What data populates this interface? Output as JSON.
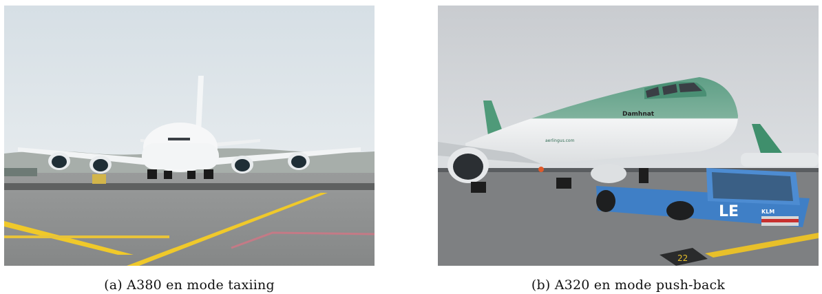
{
  "figures": [
    {
      "label": "(a)",
      "caption": "A380 en mode taxiing",
      "photo_subject": "Airbus A380 taxiing head-on on an apron"
    },
    {
      "label": "(b)",
      "caption": "A320 en mode push-back",
      "photo_subject": "Aer Lingus A320 being pushed back by a blue KLM tug"
    }
  ],
  "photo_b_text": {
    "aircraft_name": "Damhnat",
    "airline_web": "aerlingus.com",
    "tug_letters": "LE",
    "tug_brand": "KLM",
    "stand_marking": "22"
  },
  "colors": {
    "sky_a": "#d8e1e6",
    "apron_a": "#8f9191",
    "marking_yellow": "#f2cc2c",
    "sky_b": "#cfd2d6",
    "aerlingus_green": "#5f9f86",
    "tug_blue": "#3f7fc6"
  }
}
